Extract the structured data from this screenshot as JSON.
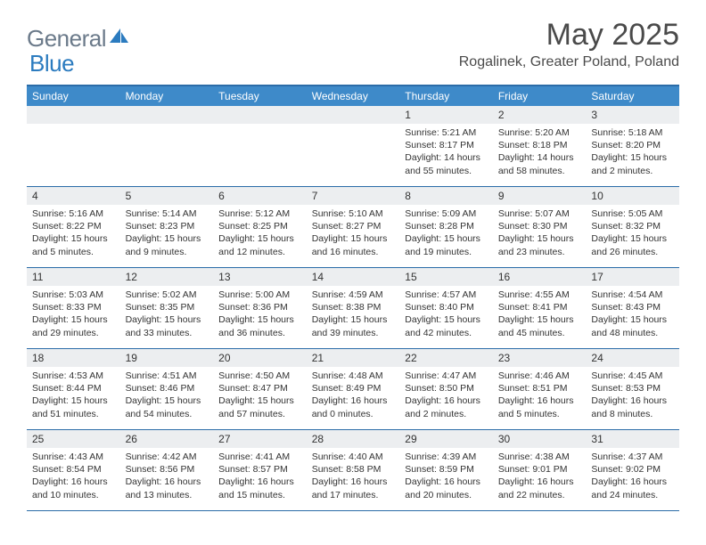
{
  "logo": {
    "general": "General",
    "blue": "Blue"
  },
  "title": "May 2025",
  "location": "Rogalinek, Greater Poland, Poland",
  "colors": {
    "header_bar": "#3e8ac9",
    "border": "#2b6ca8",
    "band": "#eceef0",
    "logo_gray": "#6b7a8a",
    "logo_blue": "#2b7bbf"
  },
  "weekdays": [
    "Sunday",
    "Monday",
    "Tuesday",
    "Wednesday",
    "Thursday",
    "Friday",
    "Saturday"
  ],
  "weeks": [
    [
      null,
      null,
      null,
      null,
      {
        "n": "1",
        "sr": "5:21 AM",
        "ss": "8:17 PM",
        "dl": "14 hours and 55 minutes."
      },
      {
        "n": "2",
        "sr": "5:20 AM",
        "ss": "8:18 PM",
        "dl": "14 hours and 58 minutes."
      },
      {
        "n": "3",
        "sr": "5:18 AM",
        "ss": "8:20 PM",
        "dl": "15 hours and 2 minutes."
      }
    ],
    [
      {
        "n": "4",
        "sr": "5:16 AM",
        "ss": "8:22 PM",
        "dl": "15 hours and 5 minutes."
      },
      {
        "n": "5",
        "sr": "5:14 AM",
        "ss": "8:23 PM",
        "dl": "15 hours and 9 minutes."
      },
      {
        "n": "6",
        "sr": "5:12 AM",
        "ss": "8:25 PM",
        "dl": "15 hours and 12 minutes."
      },
      {
        "n": "7",
        "sr": "5:10 AM",
        "ss": "8:27 PM",
        "dl": "15 hours and 16 minutes."
      },
      {
        "n": "8",
        "sr": "5:09 AM",
        "ss": "8:28 PM",
        "dl": "15 hours and 19 minutes."
      },
      {
        "n": "9",
        "sr": "5:07 AM",
        "ss": "8:30 PM",
        "dl": "15 hours and 23 minutes."
      },
      {
        "n": "10",
        "sr": "5:05 AM",
        "ss": "8:32 PM",
        "dl": "15 hours and 26 minutes."
      }
    ],
    [
      {
        "n": "11",
        "sr": "5:03 AM",
        "ss": "8:33 PM",
        "dl": "15 hours and 29 minutes."
      },
      {
        "n": "12",
        "sr": "5:02 AM",
        "ss": "8:35 PM",
        "dl": "15 hours and 33 minutes."
      },
      {
        "n": "13",
        "sr": "5:00 AM",
        "ss": "8:36 PM",
        "dl": "15 hours and 36 minutes."
      },
      {
        "n": "14",
        "sr": "4:59 AM",
        "ss": "8:38 PM",
        "dl": "15 hours and 39 minutes."
      },
      {
        "n": "15",
        "sr": "4:57 AM",
        "ss": "8:40 PM",
        "dl": "15 hours and 42 minutes."
      },
      {
        "n": "16",
        "sr": "4:55 AM",
        "ss": "8:41 PM",
        "dl": "15 hours and 45 minutes."
      },
      {
        "n": "17",
        "sr": "4:54 AM",
        "ss": "8:43 PM",
        "dl": "15 hours and 48 minutes."
      }
    ],
    [
      {
        "n": "18",
        "sr": "4:53 AM",
        "ss": "8:44 PM",
        "dl": "15 hours and 51 minutes."
      },
      {
        "n": "19",
        "sr": "4:51 AM",
        "ss": "8:46 PM",
        "dl": "15 hours and 54 minutes."
      },
      {
        "n": "20",
        "sr": "4:50 AM",
        "ss": "8:47 PM",
        "dl": "15 hours and 57 minutes."
      },
      {
        "n": "21",
        "sr": "4:48 AM",
        "ss": "8:49 PM",
        "dl": "16 hours and 0 minutes."
      },
      {
        "n": "22",
        "sr": "4:47 AM",
        "ss": "8:50 PM",
        "dl": "16 hours and 2 minutes."
      },
      {
        "n": "23",
        "sr": "4:46 AM",
        "ss": "8:51 PM",
        "dl": "16 hours and 5 minutes."
      },
      {
        "n": "24",
        "sr": "4:45 AM",
        "ss": "8:53 PM",
        "dl": "16 hours and 8 minutes."
      }
    ],
    [
      {
        "n": "25",
        "sr": "4:43 AM",
        "ss": "8:54 PM",
        "dl": "16 hours and 10 minutes."
      },
      {
        "n": "26",
        "sr": "4:42 AM",
        "ss": "8:56 PM",
        "dl": "16 hours and 13 minutes."
      },
      {
        "n": "27",
        "sr": "4:41 AM",
        "ss": "8:57 PM",
        "dl": "16 hours and 15 minutes."
      },
      {
        "n": "28",
        "sr": "4:40 AM",
        "ss": "8:58 PM",
        "dl": "16 hours and 17 minutes."
      },
      {
        "n": "29",
        "sr": "4:39 AM",
        "ss": "8:59 PM",
        "dl": "16 hours and 20 minutes."
      },
      {
        "n": "30",
        "sr": "4:38 AM",
        "ss": "9:01 PM",
        "dl": "16 hours and 22 minutes."
      },
      {
        "n": "31",
        "sr": "4:37 AM",
        "ss": "9:02 PM",
        "dl": "16 hours and 24 minutes."
      }
    ]
  ]
}
